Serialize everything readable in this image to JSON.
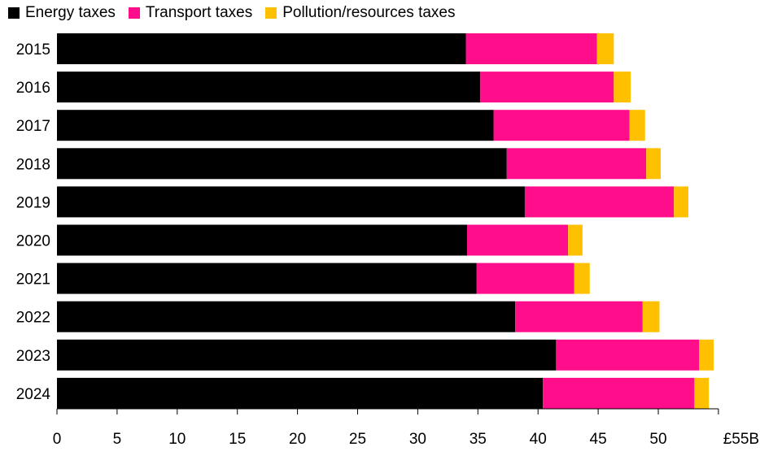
{
  "chart_data": {
    "type": "bar",
    "orientation": "horizontal",
    "stacked": true,
    "categories": [
      "2015",
      "2016",
      "2017",
      "2018",
      "2019",
      "2020",
      "2021",
      "2022",
      "2023",
      "2024"
    ],
    "series": [
      {
        "name": "Energy taxes",
        "color": "#000000",
        "values": [
          34.0,
          35.2,
          36.3,
          37.4,
          38.9,
          34.1,
          34.9,
          38.1,
          41.5,
          40.4
        ]
      },
      {
        "name": "Transport taxes",
        "color": "#ff0d8a",
        "values": [
          10.9,
          11.1,
          11.3,
          11.6,
          12.4,
          8.4,
          8.1,
          10.6,
          11.9,
          12.6
        ]
      },
      {
        "name": "Pollution/resources taxes",
        "color": "#ffc000",
        "values": [
          1.4,
          1.4,
          1.3,
          1.2,
          1.2,
          1.2,
          1.3,
          1.4,
          1.2,
          1.2
        ]
      }
    ],
    "xlim": [
      0,
      55
    ],
    "xticks": [
      0,
      5,
      10,
      15,
      20,
      25,
      30,
      35,
      40,
      45,
      50,
      55
    ],
    "xtick_labels": [
      "0",
      "5",
      "10",
      "15",
      "20",
      "25",
      "30",
      "35",
      "40",
      "45",
      "50",
      "£55B"
    ],
    "grid": false,
    "legend_position": "top-left"
  }
}
